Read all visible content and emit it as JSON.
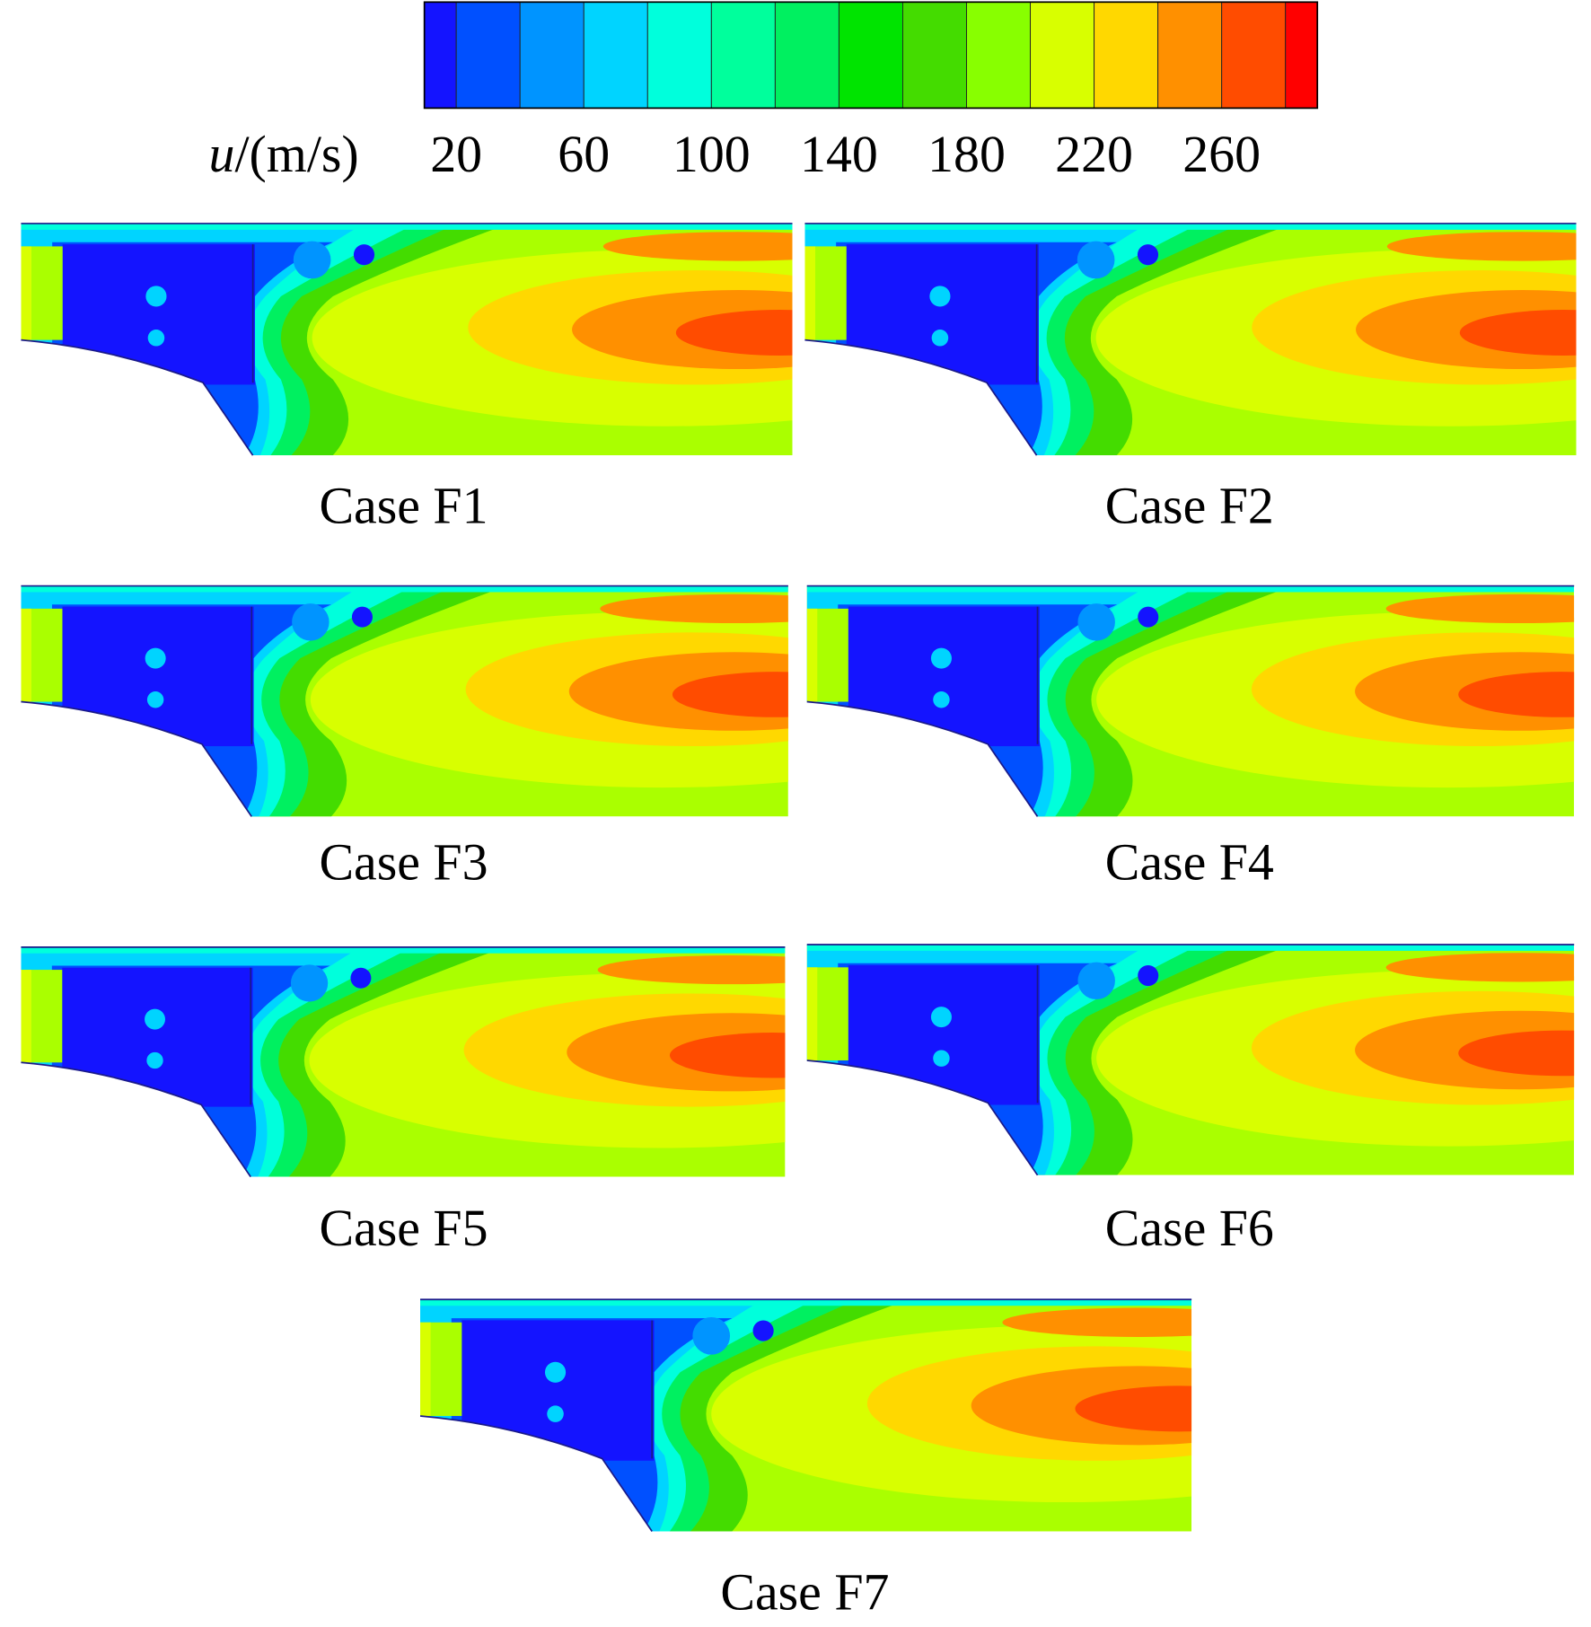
{
  "colorbar": {
    "label_var": "u",
    "label_unit": "/(m/s)",
    "levels": [
      10,
      20,
      40,
      60,
      80,
      100,
      120,
      140,
      160,
      180,
      200,
      220,
      240,
      260,
      280,
      290
    ],
    "colors": [
      "#1414ff",
      "#0050ff",
      "#0094ff",
      "#00d4ff",
      "#00ffdc",
      "#00ff9c",
      "#00f060",
      "#00e400",
      "#44dc00",
      "#88ff00",
      "#d8ff00",
      "#ffd800",
      "#ff9000",
      "#ff4c00",
      "#ff0000"
    ],
    "ticks": [
      20,
      60,
      100,
      140,
      180,
      220,
      260
    ]
  },
  "panels": [
    {
      "caption": "Case F1"
    },
    {
      "caption": "Case F2"
    },
    {
      "caption": "Case F3"
    },
    {
      "caption": "Case F4"
    },
    {
      "caption": "Case F5"
    },
    {
      "caption": "Case F6"
    },
    {
      "caption": "Case F7"
    }
  ]
}
